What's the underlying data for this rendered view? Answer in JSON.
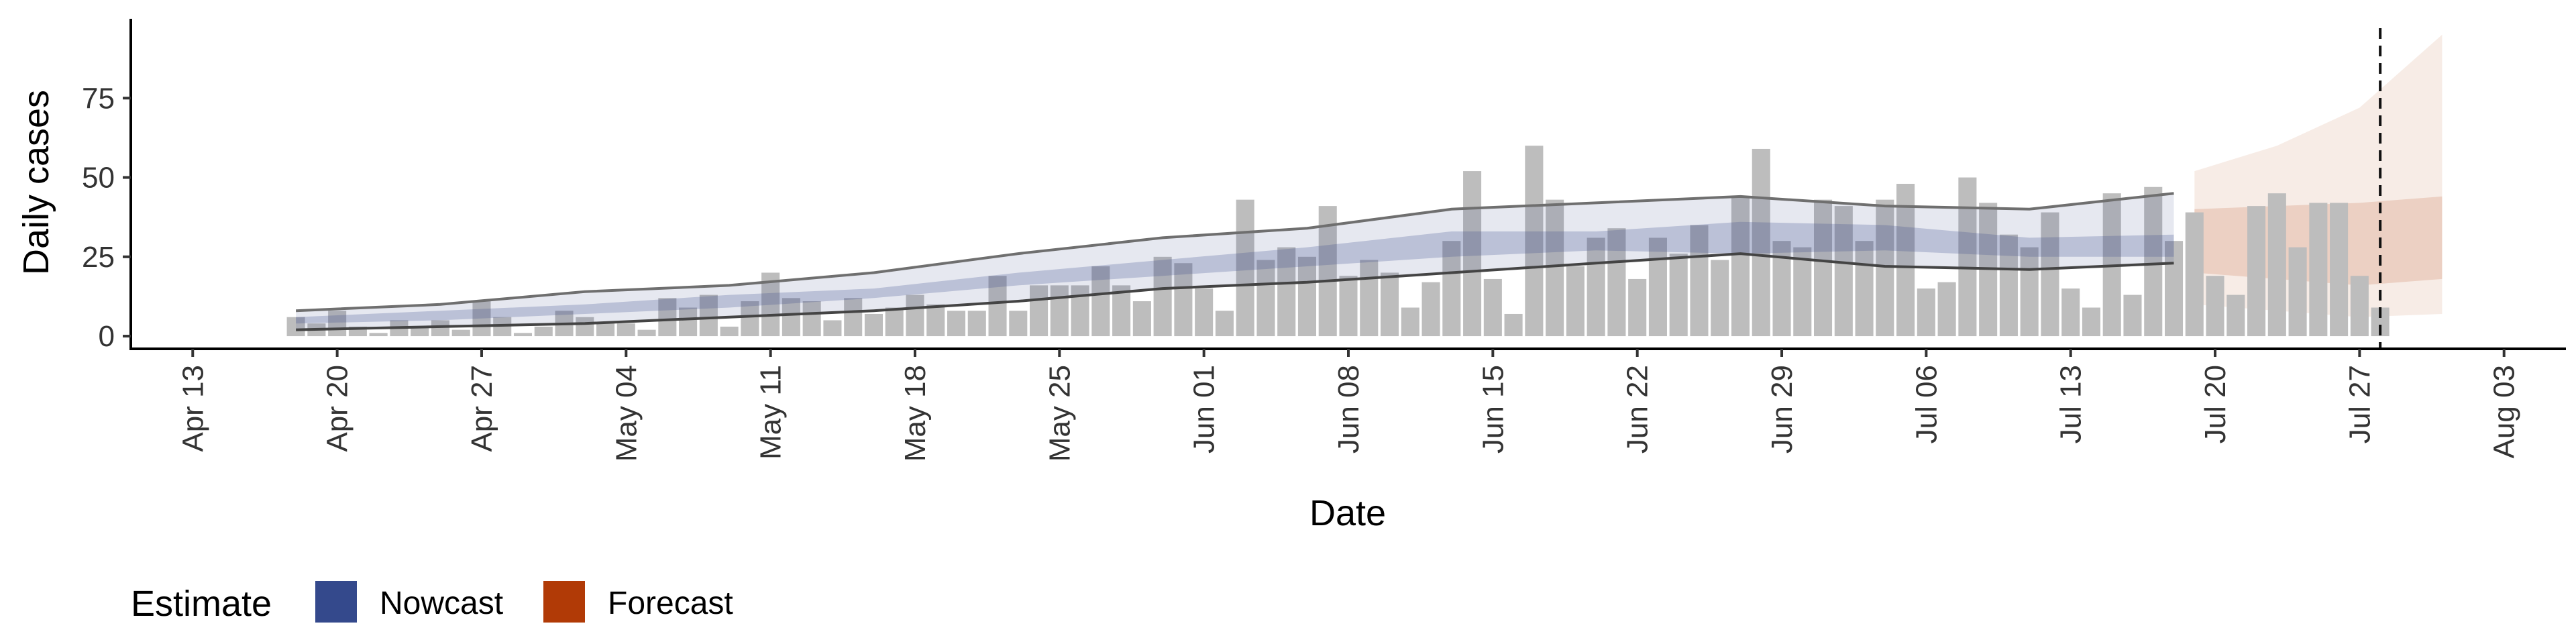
{
  "chart_data": {
    "type": "bar",
    "xlabel": "Date",
    "ylabel": "Daily cases",
    "xlim": [
      "2020-04-10",
      "2020-08-06"
    ],
    "ylim": [
      -4,
      100
    ],
    "x_ticks": [
      "2020-04-13",
      "2020-04-20",
      "2020-04-27",
      "2020-05-04",
      "2020-05-11",
      "2020-05-18",
      "2020-05-25",
      "2020-06-01",
      "2020-06-08",
      "2020-06-15",
      "2020-06-22",
      "2020-06-29",
      "2020-07-06",
      "2020-07-13",
      "2020-07-20",
      "2020-07-27",
      "2020-08-03"
    ],
    "x_tick_labels": [
      "Apr 13",
      "Apr 20",
      "Apr 27",
      "May 04",
      "May 11",
      "May 18",
      "May 25",
      "Jun 01",
      "Jun 08",
      "Jun 15",
      "Jun 22",
      "Jun 29",
      "Jul 06",
      "Jul 13",
      "Jul 20",
      "Jul 27",
      "Aug 03"
    ],
    "y_ticks": [
      0,
      25,
      50,
      75
    ],
    "y_tick_labels": [
      "0",
      "25",
      "50",
      "75"
    ],
    "reference_line_date": "2020-07-28",
    "bars": {
      "start_date": "2020-04-18",
      "values": [
        6,
        4,
        8,
        3,
        1,
        5,
        3,
        5,
        2,
        11,
        6,
        1,
        3,
        8,
        6,
        4,
        4,
        2,
        12,
        9,
        13,
        3,
        11,
        20,
        12,
        11,
        5,
        12,
        7,
        9,
        13,
        10,
        8,
        8,
        19,
        8,
        16,
        16,
        16,
        22,
        16,
        11,
        25,
        23,
        15,
        8,
        43,
        24,
        28,
        25,
        41,
        19,
        24,
        20,
        9,
        17,
        30,
        52,
        18,
        7,
        60,
        43,
        22,
        31,
        34,
        18,
        31,
        26,
        35,
        24,
        44,
        59,
        30,
        28,
        43,
        41,
        30,
        43,
        48,
        15,
        17,
        50,
        42,
        32,
        28,
        39,
        15,
        9,
        45,
        13,
        47,
        30,
        39,
        19,
        13,
        41,
        45,
        28,
        42,
        42,
        19,
        9
      ]
    },
    "series": [
      {
        "name": "Nowcast",
        "color": "#3a4d8c",
        "dates": [
          "2020-04-18",
          "2020-04-25",
          "2020-05-02",
          "2020-05-09",
          "2020-05-16",
          "2020-05-23",
          "2020-05-30",
          "2020-06-06",
          "2020-06-13",
          "2020-06-20",
          "2020-06-27",
          "2020-07-04",
          "2020-07-11",
          "2020-07-18"
        ],
        "outer_upper": [
          8,
          10,
          14,
          16,
          20,
          26,
          31,
          34,
          40,
          42,
          44,
          41,
          40,
          45
        ],
        "inner_upper": [
          6,
          8,
          10,
          13,
          15,
          20,
          24,
          28,
          33,
          33,
          36,
          35,
          31,
          32
        ],
        "inner_lower": [
          4,
          5,
          7,
          9,
          12,
          16,
          19,
          22,
          25,
          27,
          26,
          27,
          25,
          25
        ],
        "outer_lower": [
          2,
          3,
          4,
          6,
          8,
          11,
          15,
          17,
          20,
          23,
          26,
          22,
          21,
          23
        ]
      },
      {
        "name": "Forecast",
        "color": "#b5410b",
        "dates": [
          "2020-07-19",
          "2020-07-23",
          "2020-07-27",
          "2020-07-31"
        ],
        "outer_upper": [
          52,
          60,
          72,
          95
        ],
        "inner_upper": [
          40,
          41,
          42,
          44
        ],
        "inner_lower": [
          20,
          18,
          16,
          18
        ],
        "outer_lower": [
          10,
          8,
          6,
          7
        ]
      }
    ]
  },
  "legend": {
    "title": "Estimate",
    "items": [
      {
        "label": "Nowcast",
        "color": "#34498c"
      },
      {
        "label": "Forecast",
        "color": "#b13a06"
      }
    ]
  }
}
